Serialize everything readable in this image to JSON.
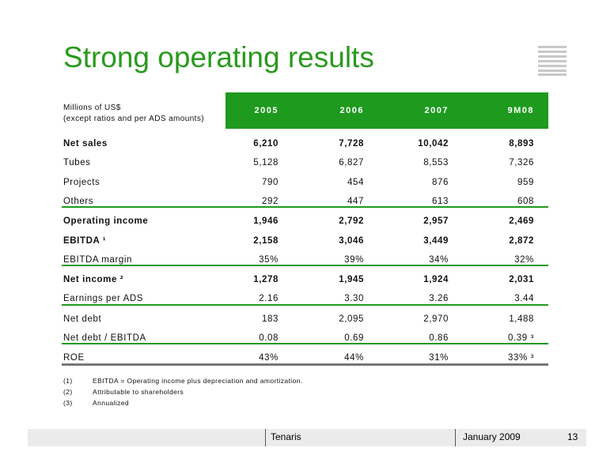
{
  "header": {
    "title": "Strong operating results"
  },
  "table": {
    "unit_label": [
      "Millions of US$",
      "(except ratios and per ADS amounts)"
    ],
    "columns": [
      "2005",
      "2006",
      "2007",
      "9M08"
    ],
    "groups": [
      [
        {
          "label": "Net sales",
          "values": [
            "6,210",
            "7,728",
            "10,042",
            "8,893"
          ],
          "bold": true
        },
        {
          "label": "Tubes",
          "values": [
            "5,128",
            "6,827",
            "8,553",
            "7,326"
          ]
        },
        {
          "label": "Projects",
          "values": [
            "790",
            "454",
            "876",
            "959"
          ]
        },
        {
          "label": "Others",
          "values": [
            "292",
            "447",
            "613",
            "608"
          ]
        }
      ],
      [
        {
          "label": "Operating income",
          "values": [
            "1,946",
            "2,792",
            "2,957",
            "2,469"
          ],
          "bold": true
        },
        {
          "label": "EBITDA ¹",
          "values": [
            "2,158",
            "3,046",
            "3,449",
            "2,872"
          ],
          "bold": true
        },
        {
          "label": "EBITDA margin",
          "values": [
            "35%",
            "39%",
            "34%",
            "32%"
          ]
        }
      ],
      [
        {
          "label": "Net income ²",
          "values": [
            "1,278",
            "1,945",
            "1,924",
            "2,031"
          ],
          "bold": true
        },
        {
          "label": "Earnings per ADS",
          "values": [
            "2.16",
            "3.30",
            "3.26",
            "3.44"
          ]
        }
      ],
      [
        {
          "label": "Net debt",
          "values": [
            "183",
            "2,095",
            "2,970",
            "1,488"
          ]
        },
        {
          "label": "Net debt / EBITDA",
          "values": [
            "0.08",
            "0.69",
            "0.86",
            "0.39 ³"
          ]
        }
      ],
      [
        {
          "label": "ROE",
          "values": [
            "43%",
            "44%",
            "31%",
            "33% ³"
          ]
        }
      ]
    ]
  },
  "footnotes": [
    {
      "mark": "(1)",
      "text": "EBITDA = Operating income plus depreciation and amortization."
    },
    {
      "mark": "(2)",
      "text": "Attributable to shareholders"
    },
    {
      "mark": "(3)",
      "text": "Annualized"
    }
  ],
  "footer": {
    "company": "Tenaris",
    "date": "January 2009",
    "page": "13"
  }
}
